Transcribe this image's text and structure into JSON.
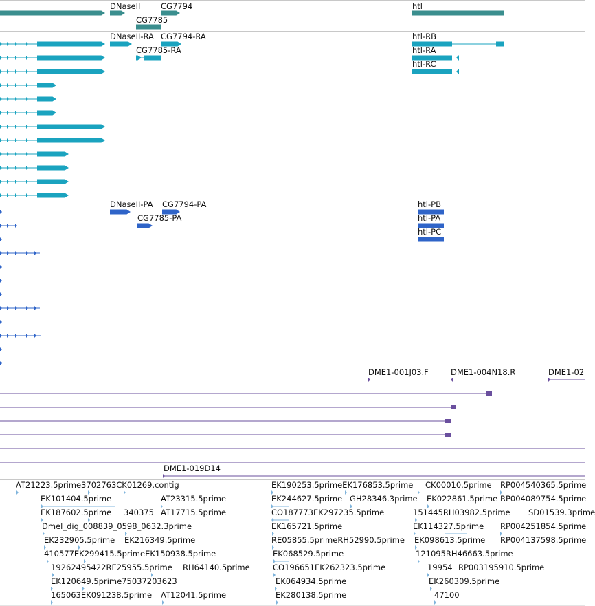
{
  "colors": {
    "gene": "#3a8e8e",
    "transcript": "#1aa3bf",
    "protein": "#2f64c8",
    "clone": "#6a4f9e",
    "est": "#7fb4dc",
    "divider": "#c8c8c8",
    "text": "#111111"
  },
  "tracks": {
    "genes": {
      "labels": [
        {
          "text": "DNaseII"
        },
        {
          "text": "CG7794"
        },
        {
          "text": "CG7785"
        },
        {
          "text": "htl"
        }
      ]
    },
    "transcripts": {
      "labels": [
        {
          "text": "DNaseII-RA"
        },
        {
          "text": "CG7794-RA"
        },
        {
          "text": "CG7785-RA"
        },
        {
          "text": "htl-RB"
        },
        {
          "text": "htl-RA"
        },
        {
          "text": "htl-RC"
        }
      ]
    },
    "proteins": {
      "labels": [
        {
          "text": "DNaseII-PA"
        },
        {
          "text": "CG7794-PA"
        },
        {
          "text": "CG7785-PA"
        },
        {
          "text": "htl-PB"
        },
        {
          "text": "htl-PA"
        },
        {
          "text": "htl-PC"
        }
      ]
    },
    "clones": {
      "labels": [
        {
          "text": "DME1-001J03.F"
        },
        {
          "text": "DME1-004N18.R"
        },
        {
          "text": "DME1-02"
        },
        {
          "text": "DME1-019D14"
        }
      ]
    },
    "ests": {
      "labels": [
        {
          "text": "AT21223.5prime3702763CK01269.contig"
        },
        {
          "text": "EK101404.5prime"
        },
        {
          "text": "AT23315.5prime"
        },
        {
          "text": "EK187602.5prime"
        },
        {
          "text": "340375"
        },
        {
          "text": "AT17715.5prime"
        },
        {
          "text": "Dmel_dig_008839_0598_0632.3prime"
        },
        {
          "text": "EK232905.5prime"
        },
        {
          "text": "EK216349.5prime"
        },
        {
          "text": "410577EK299415.5primeEK150938.5prime"
        },
        {
          "text": "19262495422RE25955.5prime"
        },
        {
          "text": "RH64140.5prime"
        },
        {
          "text": "EK120649.5prime75037203623"
        },
        {
          "text": "165063EK091238.5prime"
        },
        {
          "text": "AT12041.5prime"
        },
        {
          "text": "EK190253.5primeEK176853.5prime"
        },
        {
          "text": "CK00010.5prime"
        },
        {
          "text": "RP004540365.5prime"
        },
        {
          "text": "EK244627.5prime"
        },
        {
          "text": "GH28346.3prime"
        },
        {
          "text": "EK022861.5prime"
        },
        {
          "text": "RP004089754.5prime"
        },
        {
          "text": "CO187773EK297235.5prime"
        },
        {
          "text": "151445RH03982.5prime"
        },
        {
          "text": "SD01539.3prime"
        },
        {
          "text": "EK165721.5prime"
        },
        {
          "text": "EK114327.5prime"
        },
        {
          "text": "RP004251854.5prime"
        },
        {
          "text": "RE05855.5primeRH52990.5prime"
        },
        {
          "text": "EK098613.5prime"
        },
        {
          "text": "RP004137598.5prime"
        },
        {
          "text": "EK068529.5prime"
        },
        {
          "text": "121095RH46663.5prime"
        },
        {
          "text": "CO196651EK262323.5prime"
        },
        {
          "text": "19954"
        },
        {
          "text": "RP003195910.5prime"
        },
        {
          "text": "EK064934.5prime"
        },
        {
          "text": "EK260309.5prime"
        },
        {
          "text": "EK280138.5prime"
        },
        {
          "text": "47100"
        }
      ]
    }
  }
}
